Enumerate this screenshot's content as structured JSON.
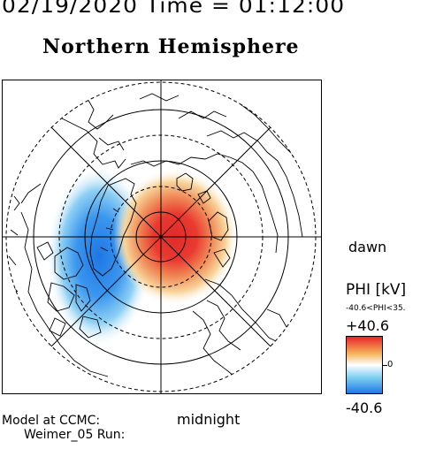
{
  "header": {
    "date_time": "02/19/2020 Time = 01:12:00",
    "hemisphere_title": "Northern Hemisphere"
  },
  "map": {
    "projection": "polar (north pole centered)",
    "orientation_labels": {
      "dawn": "dawn",
      "midnight": "midnight"
    },
    "potential_pattern": {
      "positive_cell": "dawn side, centered near pole",
      "negative_cell": "dusk side",
      "colormap": "blue-white-red"
    }
  },
  "colorbar": {
    "quantity": "PHI [kV]",
    "range_text": "-40.6<PHI<35.",
    "max_label": "+40.6",
    "min_label": "-40.6",
    "zero_label": "0",
    "max_kv": 40.6,
    "min_kv": -40.6,
    "colors": {
      "positive": "#e8242a",
      "mid_positive": "#f6b45c",
      "zero": "#ffffff",
      "mid_negative": "#7fcff2",
      "negative": "#1e78e6"
    }
  },
  "footer": {
    "model_label": "Model at CCMC:",
    "run_label": "Weimer_05 Run:"
  }
}
